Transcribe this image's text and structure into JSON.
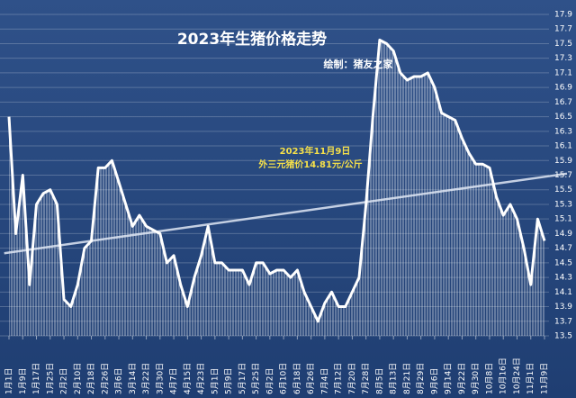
{
  "chart_data": {
    "type": "line",
    "title": "2023年生猪价格走势",
    "subtitle": "绘制：猪友之家",
    "annotations": [
      "2023年11月9日",
      "外三元猪价14.81元/公斤"
    ],
    "categories": [
      "1月1日",
      null,
      "1月9日",
      null,
      "1月17日",
      null,
      "1月25日",
      null,
      "2月2日",
      null,
      "2月10日",
      null,
      "2月18日",
      null,
      "2月26日",
      null,
      "3月6日",
      null,
      "3月14日",
      null,
      "3月22日",
      null,
      "3月30日",
      null,
      "4月7日",
      null,
      "4月15日",
      null,
      "4月23日",
      null,
      "5月1日",
      null,
      "5月9日",
      null,
      "5月17日",
      null,
      "5月25日",
      null,
      "6月2日",
      null,
      "6月10日",
      null,
      "6月18日",
      null,
      "6月26日",
      null,
      "7月4日",
      null,
      "7月12日",
      null,
      "7月20日",
      null,
      "7月28日",
      null,
      "8月5日",
      null,
      "8月13日",
      null,
      "8月21日",
      null,
      "8月29日",
      null,
      "9月6日",
      null,
      "9月14日",
      null,
      "9月22日",
      null,
      "9月30日",
      null,
      "10月8日",
      null,
      "10月16日",
      null,
      "10月24日",
      null,
      "11月1日",
      null,
      "11月9日"
    ],
    "values": [
      16.5,
      14.9,
      15.7,
      14.2,
      15.3,
      15.45,
      15.5,
      15.3,
      14.0,
      13.9,
      14.2,
      14.7,
      14.8,
      15.8,
      15.8,
      15.9,
      15.6,
      15.3,
      15.0,
      15.15,
      15.0,
      14.95,
      14.9,
      14.5,
      14.6,
      14.2,
      13.9,
      14.3,
      14.6,
      15.0,
      14.5,
      14.5,
      14.4,
      14.4,
      14.4,
      14.2,
      14.5,
      14.5,
      14.35,
      14.4,
      14.4,
      14.3,
      14.4,
      14.1,
      13.9,
      13.7,
      13.95,
      14.1,
      13.9,
      13.9,
      14.1,
      14.3,
      15.3,
      16.5,
      17.55,
      17.5,
      17.4,
      17.1,
      17.0,
      17.05,
      17.05,
      17.1,
      16.9,
      16.55,
      16.5,
      16.45,
      16.2,
      16.0,
      15.85,
      15.85,
      15.8,
      15.4,
      15.15,
      15.3,
      15.1,
      14.7,
      14.2,
      15.1,
      14.8
    ],
    "color": "#ffffff",
    "trendline": true,
    "ylim": [
      13.5,
      17.9
    ],
    "yticks": [
      13.5,
      13.7,
      13.9,
      14.1,
      14.3,
      14.5,
      14.7,
      14.9,
      15.1,
      15.3,
      15.5,
      15.7,
      15.9,
      16.1,
      16.3,
      16.5,
      16.7,
      16.9,
      17.1,
      17.3,
      17.5,
      17.7,
      17.9
    ],
    "grid": true
  }
}
